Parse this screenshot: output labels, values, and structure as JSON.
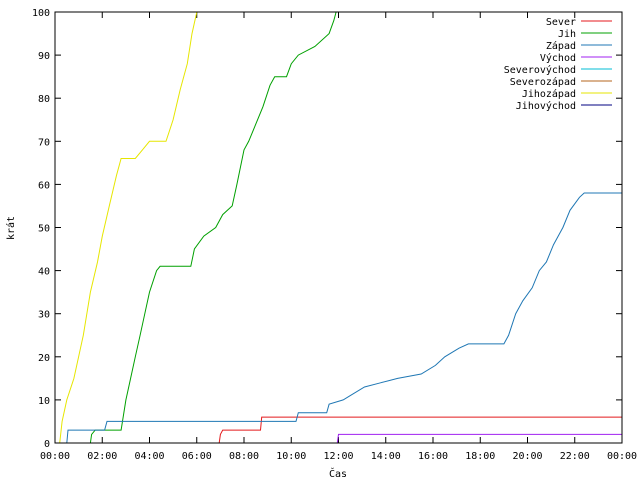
{
  "chart_data": {
    "type": "line",
    "xlabel": "Čas",
    "ylabel": "krát",
    "xlim": [
      0,
      24
    ],
    "ylim": [
      0,
      100
    ],
    "x_ticks": [
      {
        "value": 0,
        "label": "00:00"
      },
      {
        "value": 2,
        "label": "02:00"
      },
      {
        "value": 4,
        "label": "04:00"
      },
      {
        "value": 6,
        "label": "06:00"
      },
      {
        "value": 8,
        "label": "08:00"
      },
      {
        "value": 10,
        "label": "10:00"
      },
      {
        "value": 12,
        "label": "12:00"
      },
      {
        "value": 14,
        "label": "14:00"
      },
      {
        "value": 16,
        "label": "16:00"
      },
      {
        "value": 18,
        "label": "18:00"
      },
      {
        "value": 20,
        "label": "20:00"
      },
      {
        "value": 22,
        "label": "22:00"
      },
      {
        "value": 24,
        "label": "00:00"
      }
    ],
    "y_ticks": [
      {
        "value": 0,
        "label": "0"
      },
      {
        "value": 10,
        "label": "10"
      },
      {
        "value": 20,
        "label": "20"
      },
      {
        "value": 30,
        "label": "30"
      },
      {
        "value": 40,
        "label": "40"
      },
      {
        "value": 50,
        "label": "50"
      },
      {
        "value": 60,
        "label": "60"
      },
      {
        "value": 70,
        "label": "70"
      },
      {
        "value": 80,
        "label": "80"
      },
      {
        "value": 90,
        "label": "90"
      },
      {
        "value": 100,
        "label": "100"
      }
    ],
    "grid": false,
    "legend_position": "top-right",
    "series": [
      {
        "name": "Sever",
        "color": "#e41a1c",
        "points": [
          [
            0,
            0
          ],
          [
            6.95,
            0
          ],
          [
            7.0,
            2
          ],
          [
            7.1,
            3
          ],
          [
            8.7,
            3
          ],
          [
            8.75,
            6
          ],
          [
            24,
            6
          ]
        ]
      },
      {
        "name": "Jih",
        "color": "#00a000",
        "points": [
          [
            0,
            0
          ],
          [
            1.5,
            0
          ],
          [
            1.55,
            2
          ],
          [
            1.7,
            3
          ],
          [
            2.8,
            3
          ],
          [
            3.0,
            10
          ],
          [
            3.2,
            15
          ],
          [
            3.4,
            20
          ],
          [
            3.6,
            25
          ],
          [
            3.8,
            30
          ],
          [
            4.0,
            35
          ],
          [
            4.3,
            40
          ],
          [
            4.45,
            41
          ],
          [
            5.75,
            41
          ],
          [
            5.9,
            45
          ],
          [
            6.3,
            48
          ],
          [
            6.8,
            50
          ],
          [
            7.1,
            53
          ],
          [
            7.5,
            55
          ],
          [
            7.7,
            60
          ],
          [
            8.0,
            68
          ],
          [
            8.2,
            70
          ],
          [
            8.5,
            74
          ],
          [
            8.8,
            78
          ],
          [
            9.1,
            83
          ],
          [
            9.3,
            85
          ],
          [
            9.8,
            85
          ],
          [
            10.0,
            88
          ],
          [
            10.3,
            90
          ],
          [
            11.0,
            92
          ],
          [
            11.6,
            95
          ],
          [
            11.8,
            98
          ],
          [
            11.9,
            100
          ]
        ]
      },
      {
        "name": "Západ",
        "color": "#1f77b4",
        "points": [
          [
            0,
            0
          ],
          [
            0.5,
            0
          ],
          [
            0.55,
            3
          ],
          [
            2.1,
            3
          ],
          [
            2.2,
            5
          ],
          [
            10.2,
            5
          ],
          [
            10.3,
            7
          ],
          [
            11.5,
            7
          ],
          [
            11.6,
            9
          ],
          [
            12.2,
            10
          ],
          [
            12.5,
            11
          ],
          [
            13.1,
            13
          ],
          [
            13.8,
            14
          ],
          [
            14.5,
            15
          ],
          [
            15.5,
            16
          ],
          [
            16.1,
            18
          ],
          [
            16.5,
            20
          ],
          [
            17.1,
            22
          ],
          [
            17.5,
            23
          ],
          [
            19.0,
            23
          ],
          [
            19.2,
            25
          ],
          [
            19.5,
            30
          ],
          [
            19.8,
            33
          ],
          [
            20.2,
            36
          ],
          [
            20.5,
            40
          ],
          [
            20.8,
            42
          ],
          [
            21.1,
            46
          ],
          [
            21.5,
            50
          ],
          [
            21.8,
            54
          ],
          [
            22.2,
            57
          ],
          [
            22.4,
            58
          ],
          [
            24,
            58
          ]
        ]
      },
      {
        "name": "Východ",
        "color": "#a020f0",
        "points": [
          [
            0,
            0
          ],
          [
            11.95,
            0
          ],
          [
            12.0,
            2
          ],
          [
            24,
            2
          ]
        ]
      },
      {
        "name": "Severovýchod",
        "color": "#00bcd4",
        "points": []
      },
      {
        "name": "Severozápad",
        "color": "#b5651d",
        "points": []
      },
      {
        "name": "Jihozápad",
        "color": "#e6e600",
        "points": [
          [
            0,
            0
          ],
          [
            0.2,
            0
          ],
          [
            0.3,
            5
          ],
          [
            0.5,
            10
          ],
          [
            0.8,
            15
          ],
          [
            1.0,
            20
          ],
          [
            1.2,
            25
          ],
          [
            1.5,
            35
          ],
          [
            1.8,
            42
          ],
          [
            2.0,
            48
          ],
          [
            2.3,
            55
          ],
          [
            2.6,
            62
          ],
          [
            2.8,
            66
          ],
          [
            3.4,
            66
          ],
          [
            3.7,
            68
          ],
          [
            4.0,
            70
          ],
          [
            4.7,
            70
          ],
          [
            5.0,
            75
          ],
          [
            5.3,
            82
          ],
          [
            5.6,
            88
          ],
          [
            5.8,
            95
          ],
          [
            6.0,
            100
          ]
        ]
      },
      {
        "name": "Jihovýchod",
        "color": "#000080",
        "points": []
      }
    ]
  }
}
